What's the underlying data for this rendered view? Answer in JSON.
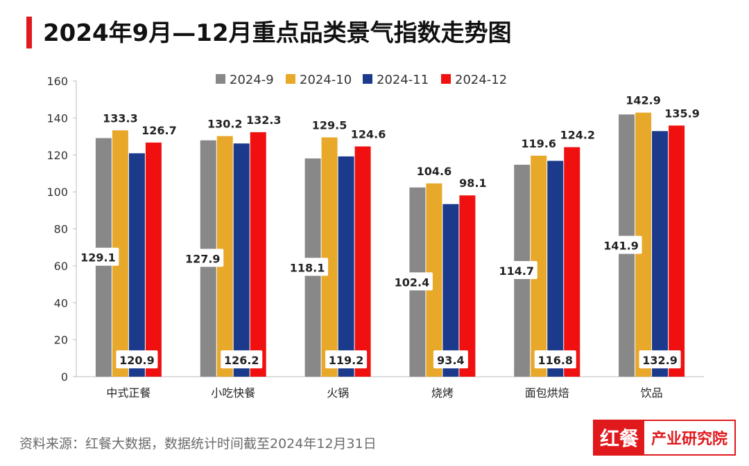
{
  "title": "2024年9月—12月重点品类景气指数走势图",
  "source_note": "资料来源：红餐大数据，数据统计时间截至2024年12月31日",
  "logo": {
    "left": "红餐",
    "right": "产业研究院"
  },
  "colors": {
    "accent": "#e0191d",
    "series": [
      "#888888",
      "#e8a82a",
      "#1c3a8c",
      "#f01010"
    ]
  },
  "chart_data": {
    "type": "bar",
    "title": "2024年9月—12月重点品类景气指数走势图",
    "categories": [
      "中式正餐",
      "小吃快餐",
      "火锅",
      "烧烤",
      "面包烘焙",
      "饮品"
    ],
    "series": [
      {
        "name": "2024-9",
        "values": [
          129.1,
          127.9,
          118.1,
          102.4,
          114.7,
          141.9
        ]
      },
      {
        "name": "2024-10",
        "values": [
          133.3,
          130.2,
          129.5,
          104.6,
          119.6,
          142.9
        ]
      },
      {
        "name": "2024-11",
        "values": [
          120.9,
          126.2,
          119.2,
          93.4,
          116.8,
          132.9
        ]
      },
      {
        "name": "2024-12",
        "values": [
          126.7,
          132.3,
          124.6,
          98.1,
          124.2,
          135.9
        ]
      }
    ],
    "ylim": [
      0,
      160
    ],
    "yticks": [
      0,
      20,
      40,
      60,
      80,
      100,
      120,
      140,
      160
    ],
    "grid": false,
    "legend": "top-center",
    "xlabel": "",
    "ylabel": ""
  }
}
